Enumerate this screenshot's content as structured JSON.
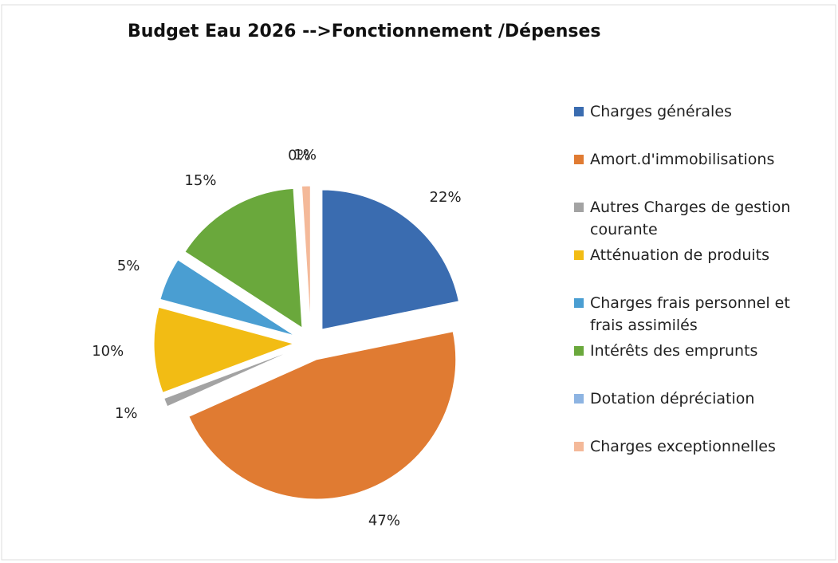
{
  "chart_data": {
    "type": "pie",
    "title": "Budget Eau 2026  -->Fonctionnement /Dépenses",
    "categories": [
      "Charges générales",
      "Amort.d'immobilisations",
      "Autres Charges de gestion courante",
      "Atténuation de produits",
      "Charges frais personnel et frais assimilés",
      "Intérêts des emprunts",
      "Dotation dépréciation",
      "Charges exceptionnelles"
    ],
    "values": [
      22,
      47,
      1,
      10,
      5,
      15,
      0,
      1
    ],
    "value_labels": [
      "22%",
      "47%",
      "1%",
      "10%",
      "5%",
      "15%",
      "0%",
      "1%"
    ],
    "colors": [
      "#3a6cb0",
      "#e07b32",
      "#a3a3a3",
      "#f2bc14",
      "#4a9ed2",
      "#6aa83c",
      "#8db4e2",
      "#f4b999"
    ],
    "legend": "right"
  }
}
